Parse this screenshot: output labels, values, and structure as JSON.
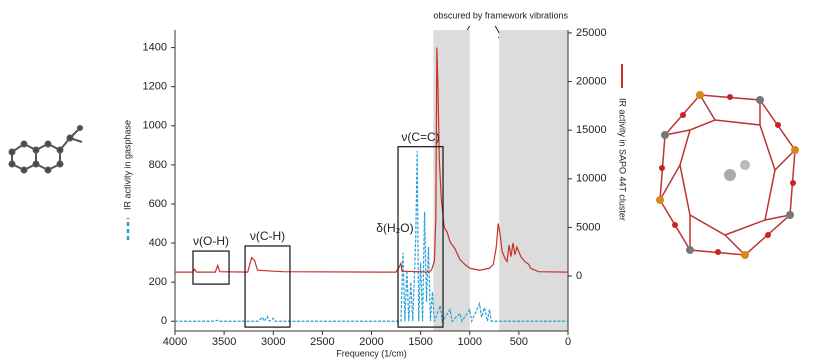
{
  "chart_data": {
    "type": "line",
    "xlabel": "Frequency (1/cm)",
    "xlim": [
      4000,
      0
    ],
    "xticks": [
      4000,
      3500,
      3000,
      2500,
      2000,
      1500,
      1000,
      500,
      0
    ],
    "ylim": [
      -50,
      1490
    ],
    "yticks": [
      0,
      200,
      400,
      600,
      800,
      1000,
      1200,
      1400
    ],
    "y2lim": [
      -5650,
      25300
    ],
    "y2ticks": [
      0,
      5000,
      10000,
      15000,
      20000,
      25000
    ],
    "shaded_regions": [
      [
        1370,
        1000
      ],
      [
        700,
        0
      ]
    ],
    "shade_color": "#dcdcdc",
    "note": "obscured by framework vibrations",
    "boxes": [
      {
        "label": "ν(O-H)",
        "x": [
          3817,
          3450
        ],
        "y": [
          190,
          359
        ]
      },
      {
        "label": "ν(C-H)",
        "x": [
          3287,
          2830
        ],
        "y": [
          -30,
          385
        ]
      },
      {
        "label": "ν(C=C)",
        "x": [
          1730,
          1272
        ],
        "y": [
          -30,
          893
        ]
      }
    ],
    "annotations": [
      {
        "label": "δ(H₂O)",
        "x": 1700,
        "y": 474
      }
    ],
    "series": [
      {
        "name": "IR activity in gasphase",
        "color": "#2a9fd6",
        "axis": "y",
        "dashed": true,
        "x": [
          4000,
          3600,
          3570,
          3550,
          3150,
          3110,
          3090,
          3060,
          3040,
          3000,
          2980,
          1700,
          1680,
          1660,
          1640,
          1620,
          1600,
          1580,
          1550,
          1535,
          1520,
          1500,
          1480,
          1460,
          1440,
          1420,
          1400,
          1380,
          1360,
          1300,
          1280,
          1200,
          1180,
          1100,
          1080,
          1000,
          980,
          900,
          880,
          850,
          820,
          800,
          780,
          600,
          0
        ],
        "values": [
          0,
          0,
          5,
          0,
          0,
          20,
          0,
          25,
          0,
          15,
          0,
          0,
          350,
          0,
          260,
          0,
          200,
          0,
          420,
          870,
          0,
          300,
          0,
          560,
          100,
          380,
          0,
          150,
          0,
          80,
          0,
          60,
          0,
          40,
          0,
          60,
          0,
          90,
          20,
          70,
          0,
          60,
          0,
          0,
          0
        ]
      },
      {
        "name": "IR activity in SAPO 44T cluster",
        "color": "#c8302c",
        "axis": "y2",
        "dashed": false,
        "x": [
          4000,
          3820,
          3800,
          3780,
          3590,
          3565,
          3545,
          3260,
          3220,
          3190,
          3160,
          3000,
          2900,
          1750,
          1715,
          1700,
          1690,
          1420,
          1390,
          1360,
          1345,
          1335,
          1325,
          1310,
          1290,
          1260,
          1230,
          1200,
          1150,
          1100,
          1050,
          1000,
          900,
          800,
          760,
          730,
          710,
          690,
          670,
          640,
          620,
          600,
          580,
          560,
          540,
          520,
          500,
          480,
          440,
          400,
          380,
          300,
          0
        ],
        "values": [
          400,
          400,
          700,
          400,
          400,
          1100,
          450,
          400,
          1900,
          1600,
          600,
          500,
          450,
          400,
          1000,
          1300,
          500,
          400,
          600,
          1500,
          6000,
          23500,
          20000,
          12000,
          8000,
          5000,
          4500,
          3500,
          2800,
          1700,
          1200,
          800,
          600,
          800,
          1200,
          3000,
          5400,
          4200,
          2500,
          1800,
          1500,
          3200,
          2000,
          3400,
          2200,
          3000,
          2500,
          2000,
          1500,
          1200,
          800,
          450,
          400
        ]
      }
    ]
  }
}
